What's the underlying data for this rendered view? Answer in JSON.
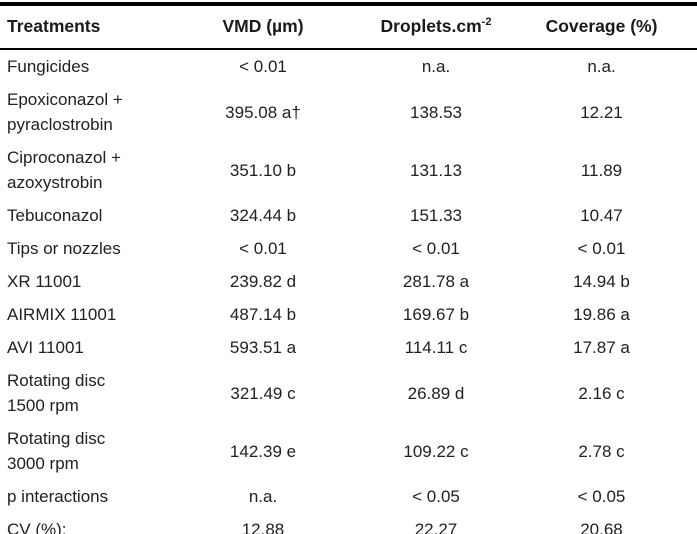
{
  "meta": {
    "colors": {
      "background": "#ffffff",
      "text": "#212121",
      "rule": "#000000"
    }
  },
  "table": {
    "header": {
      "treatments": "Treatments",
      "vmd": "VMD (µm)",
      "droplets_base": "Droplets.cm",
      "droplets_sup": "-2",
      "coverage": "Coverage (%)"
    },
    "rows": [
      {
        "treatment": "Fungicides",
        "vmd": "< 0.01",
        "droplets": "n.a.",
        "coverage": "n.a."
      },
      {
        "treatment": "Epoxiconazol +\npyraclostrobin",
        "vmd": "395.08 a†",
        "droplets": "138.53",
        "coverage": "12.21"
      },
      {
        "treatment": "Ciproconazol +\nazoxystrobin",
        "vmd": "351.10 b",
        "droplets": "131.13",
        "coverage": "11.89"
      },
      {
        "treatment": "Tebuconazol",
        "vmd": "324.44 b",
        "droplets": "151.33",
        "coverage": "10.47"
      },
      {
        "treatment": "Tips or nozzles",
        "vmd": "< 0.01",
        "droplets": "< 0.01",
        "coverage": "< 0.01"
      },
      {
        "treatment": "XR 11001",
        "vmd": "239.82 d",
        "droplets": "281.78 a",
        "coverage": "14.94 b"
      },
      {
        "treatment": "AIRMIX 11001",
        "vmd": "487.14 b",
        "droplets": "169.67 b",
        "coverage": "19.86 a"
      },
      {
        "treatment": "AVI 11001",
        "vmd": "593.51 a",
        "droplets": "114.11 c",
        "coverage": "17.87 a"
      },
      {
        "treatment": "Rotating disc\n1500 rpm",
        "vmd": "321.49 c",
        "droplets": "26.89 d",
        "coverage": "2.16 c"
      },
      {
        "treatment": "Rotating disc\n3000 rpm",
        "vmd": "142.39 e",
        "droplets": "109.22 c",
        "coverage": "2.78 c"
      },
      {
        "treatment": "p interactions",
        "vmd": "n.a.",
        "droplets": "< 0.05",
        "coverage": "< 0.05"
      },
      {
        "treatment": "CV (%):",
        "vmd": "12.88",
        "droplets": "22.27",
        "coverage": "20.68"
      }
    ]
  }
}
